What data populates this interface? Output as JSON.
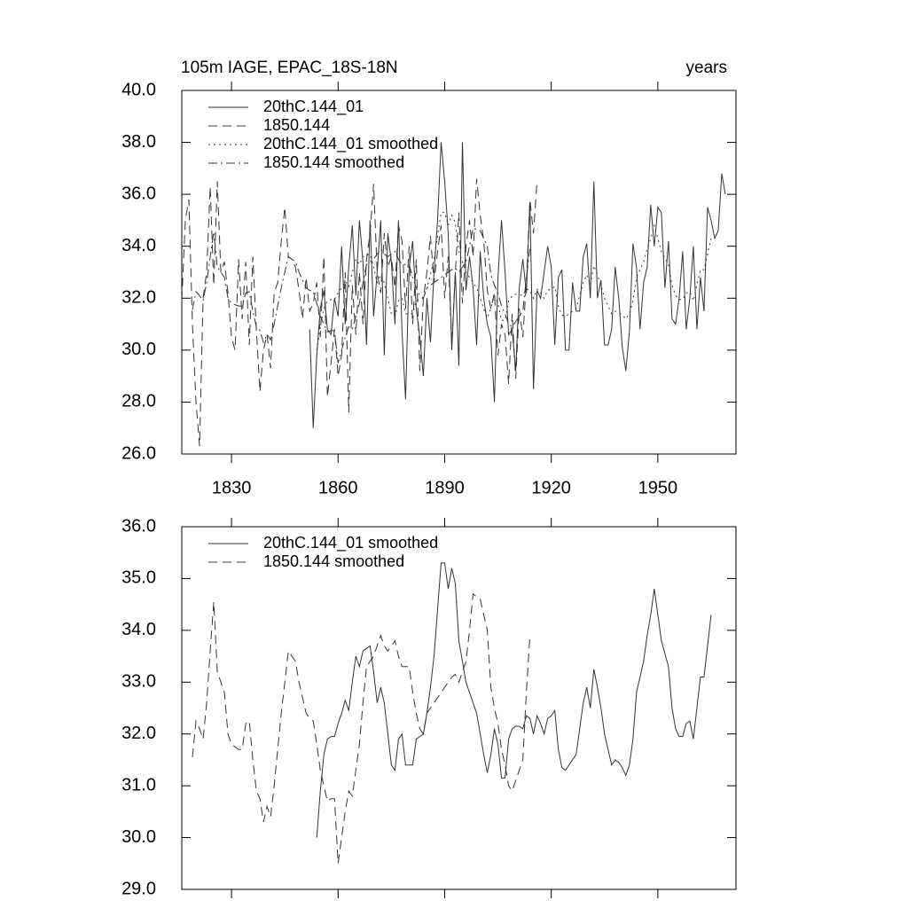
{
  "chart_data": [
    {
      "type": "line",
      "title": "105m IAGE, EPAC_18S-18N",
      "right_title": "years",
      "xlim": [
        1816,
        1972
      ],
      "xticks": [
        1830,
        1860,
        1890,
        1920,
        1950
      ],
      "ylim": [
        26,
        40
      ],
      "yticks": [
        {
          "value": 26,
          "label": "26.0"
        },
        {
          "value": 28,
          "label": "28.0"
        },
        {
          "value": 30,
          "label": "30.0"
        },
        {
          "value": 32,
          "label": "32.0"
        },
        {
          "value": 34,
          "label": "34.0"
        },
        {
          "value": 36,
          "label": "36.0"
        },
        {
          "value": 38,
          "label": "38.0"
        },
        {
          "value": 40,
          "label": "40.0"
        }
      ],
      "series": [
        {
          "name": "20thC.144_01",
          "color": "#333333",
          "dash": "solid",
          "x": [
            1852,
            1853,
            1854,
            1855,
            1856,
            1857,
            1858,
            1859,
            1860,
            1861,
            1862,
            1863,
            1864,
            1865,
            1866,
            1867,
            1868,
            1869,
            1870,
            1871,
            1872,
            1873,
            1874,
            1875,
            1876,
            1877,
            1878,
            1879,
            1880,
            1881,
            1882,
            1883,
            1884,
            1885,
            1886,
            1887,
            1888,
            1889,
            1890,
            1891,
            1892,
            1893,
            1894,
            1895,
            1896,
            1897,
            1898,
            1899,
            1900,
            1901,
            1902,
            1903,
            1904,
            1905,
            1906,
            1907,
            1908,
            1909,
            1910,
            1911,
            1912,
            1913,
            1914,
            1915,
            1916,
            1917,
            1918,
            1919,
            1920,
            1921,
            1922,
            1923,
            1924,
            1925,
            1926,
            1927,
            1928,
            1929,
            1930,
            1931,
            1932,
            1933,
            1934,
            1935,
            1936,
            1937,
            1938,
            1939,
            1940,
            1941,
            1942,
            1943,
            1944,
            1945,
            1946,
            1947,
            1948,
            1949,
            1950,
            1951,
            1952,
            1953,
            1954,
            1955,
            1956,
            1957,
            1958,
            1959,
            1960,
            1961,
            1962,
            1963,
            1964,
            1965,
            1966,
            1967,
            1968,
            1969
          ],
          "values": [
            30.8,
            27.0,
            29.8,
            31.6,
            32.3,
            30.8,
            30.6,
            32.0,
            31.3,
            34.0,
            31.0,
            33.2,
            34.8,
            32.1,
            35.0,
            33.4,
            30.2,
            35.0,
            31.3,
            33.0,
            35.0,
            29.8,
            34.5,
            33.4,
            31.0,
            35.0,
            30.7,
            28.1,
            33.2,
            34.2,
            31.6,
            30.5,
            29.0,
            32.0,
            30.3,
            33.0,
            35.0,
            38.0,
            36.5,
            34.5,
            30.0,
            33.0,
            29.4,
            38.0,
            32.3,
            33.6,
            32.4,
            30.2,
            33.8,
            32.0,
            31.0,
            30.5,
            28.0,
            32.8,
            35.0,
            33.0,
            30.6,
            30.8,
            29.2,
            32.4,
            33.5,
            32.2,
            35.7,
            28.5,
            32.3,
            32.0,
            33.0,
            34.0,
            33.2,
            30.2,
            32.8,
            33.1,
            30.0,
            30.0,
            32.6,
            31.5,
            31.5,
            33.6,
            34.1,
            32.0,
            36.5,
            32.0,
            32.7,
            30.2,
            30.2,
            30.8,
            33.2,
            32.0,
            30.1,
            29.2,
            30.7,
            34.1,
            33.2,
            30.8,
            32.6,
            33.2,
            35.6,
            34.0,
            35.5,
            35.3,
            32.4,
            34.2,
            31.2,
            31.0,
            32.0,
            33.8,
            30.8,
            32.0,
            34.0,
            30.8,
            32.8,
            31.5,
            35.5,
            35.0,
            34.3,
            34.6,
            36.8,
            36.0
          ]
        },
        {
          "name": "1850.144",
          "color": "#333333",
          "dash": "dashed",
          "x": [
            1816,
            1817,
            1818,
            1819,
            1820,
            1821,
            1822,
            1823,
            1824,
            1825,
            1826,
            1827,
            1828,
            1829,
            1830,
            1831,
            1832,
            1833,
            1834,
            1835,
            1836,
            1837,
            1838,
            1839,
            1840,
            1841,
            1842,
            1843,
            1844,
            1845,
            1846,
            1847,
            1848,
            1849,
            1850,
            1851,
            1852,
            1853,
            1854,
            1855,
            1856,
            1857,
            1858,
            1859,
            1860,
            1861,
            1862,
            1863,
            1864,
            1865,
            1866,
            1867,
            1868,
            1869,
            1870,
            1871,
            1872,
            1873,
            1874,
            1875,
            1876,
            1877,
            1878,
            1879,
            1880,
            1881,
            1882,
            1883,
            1884,
            1885,
            1886,
            1887,
            1888,
            1889,
            1890,
            1891,
            1892,
            1893,
            1894,
            1895,
            1896,
            1897,
            1898,
            1899,
            1900,
            1901,
            1902,
            1903,
            1904,
            1905,
            1906,
            1907,
            1908,
            1909,
            1910,
            1911,
            1912,
            1913,
            1914,
            1915,
            1916
          ],
          "values": [
            31.9,
            35.0,
            35.8,
            31.0,
            28.0,
            26.3,
            32.0,
            33.0,
            36.3,
            32.5,
            36.5,
            33.0,
            33.4,
            32.2,
            30.5,
            30.0,
            33.5,
            31.2,
            33.4,
            30.2,
            33.6,
            30.8,
            28.4,
            30.0,
            30.6,
            29.3,
            32.2,
            32.6,
            34.2,
            35.5,
            33.6,
            33.5,
            33.2,
            32.3,
            31.2,
            32.8,
            31.5,
            31.8,
            32.6,
            30.5,
            33.6,
            28.2,
            29.5,
            30.8,
            29.0,
            29.8,
            33.0,
            27.6,
            32.5,
            30.6,
            33.0,
            31.0,
            33.5,
            34.5,
            36.4,
            33.0,
            32.2,
            34.5,
            33.2,
            33.6,
            32.4,
            34.8,
            34.2,
            31.6,
            34.0,
            31.0,
            33.5,
            29.2,
            32.0,
            33.0,
            34.4,
            32.6,
            33.8,
            34.8,
            32.0,
            33.6,
            30.2,
            33.0,
            35.3,
            31.8,
            34.0,
            35.0,
            33.6,
            36.6,
            35.2,
            34.2,
            32.3,
            31.6,
            32.2,
            29.8,
            31.0,
            30.6,
            28.7,
            31.4,
            28.9,
            31.6,
            30.5,
            32.6,
            35.8,
            34.5,
            36.5
          ]
        },
        {
          "name": "20thC.144_01 smoothed",
          "color": "#333333",
          "dash": "dotted",
          "x": [
            1854,
            1855,
            1856,
            1857,
            1858,
            1859,
            1860,
            1861,
            1862,
            1863,
            1864,
            1865,
            1866,
            1867,
            1868,
            1869,
            1870,
            1871,
            1872,
            1873,
            1874,
            1875,
            1876,
            1877,
            1878,
            1879,
            1880,
            1881,
            1882,
            1883,
            1884,
            1885,
            1886,
            1887,
            1888,
            1889,
            1890,
            1891,
            1892,
            1893,
            1894,
            1895,
            1896,
            1897,
            1898,
            1899,
            1900,
            1901,
            1902,
            1903,
            1904,
            1905,
            1906,
            1907,
            1908,
            1909,
            1910,
            1911,
            1912,
            1913,
            1914,
            1915,
            1916,
            1917,
            1918,
            1919,
            1920,
            1921,
            1922,
            1923,
            1924,
            1925,
            1926,
            1927,
            1928,
            1929,
            1930,
            1931,
            1932,
            1933,
            1934,
            1935,
            1936,
            1937,
            1938,
            1939,
            1940,
            1941,
            1942,
            1943,
            1944,
            1945,
            1946,
            1947,
            1948,
            1949,
            1950,
            1951,
            1952,
            1953,
            1954,
            1955,
            1956,
            1957,
            1958,
            1959,
            1960,
            1961,
            1962,
            1963,
            1964,
            1965
          ],
          "values": [
            30.0,
            30.9,
            31.6,
            31.9,
            31.95,
            31.95,
            32.2,
            32.4,
            32.65,
            32.45,
            33.0,
            33.5,
            33.3,
            33.6,
            33.65,
            33.7,
            33.2,
            32.6,
            32.9,
            32.6,
            32.0,
            31.4,
            31.3,
            31.9,
            32.0,
            31.4,
            31.4,
            31.4,
            31.9,
            31.95,
            32.0,
            32.4,
            32.9,
            33.5,
            34.4,
            35.3,
            35.3,
            34.8,
            35.2,
            34.9,
            33.8,
            33.4,
            33.0,
            32.8,
            32.6,
            32.4,
            32.0,
            31.6,
            31.25,
            31.6,
            32.1,
            31.8,
            31.15,
            31.15,
            31.9,
            32.1,
            32.15,
            32.15,
            32.1,
            32.35,
            32.3,
            32.0,
            32.35,
            32.2,
            32.0,
            32.3,
            32.35,
            32.45,
            31.7,
            31.35,
            31.3,
            31.4,
            31.5,
            31.6,
            32.1,
            32.6,
            32.9,
            32.5,
            33.25,
            32.9,
            32.5,
            32.0,
            31.7,
            31.4,
            31.5,
            31.45,
            31.35,
            31.2,
            31.4,
            31.9,
            32.8,
            33.1,
            33.4,
            33.9,
            34.3,
            34.8,
            34.3,
            33.8,
            33.55,
            33.3,
            32.5,
            32.1,
            31.95,
            31.95,
            32.2,
            32.25,
            31.9,
            32.5,
            33.1,
            33.1,
            33.7,
            34.3
          ]
        },
        {
          "name": "1850.144 smoothed",
          "color": "#333333",
          "dash": "dashdot",
          "x": [
            1819,
            1820,
            1821,
            1822,
            1823,
            1824,
            1825,
            1826,
            1827,
            1828,
            1829,
            1830,
            1831,
            1832,
            1833,
            1834,
            1835,
            1836,
            1837,
            1838,
            1839,
            1840,
            1841,
            1842,
            1843,
            1844,
            1845,
            1846,
            1847,
            1848,
            1849,
            1850,
            1851,
            1852,
            1853,
            1854,
            1855,
            1856,
            1857,
            1858,
            1859,
            1860,
            1861,
            1862,
            1863,
            1864,
            1865,
            1866,
            1867,
            1868,
            1869,
            1870,
            1871,
            1872,
            1873,
            1874,
            1875,
            1876,
            1877,
            1878,
            1879,
            1880,
            1881,
            1882,
            1883,
            1884,
            1885,
            1886,
            1887,
            1888,
            1889,
            1890,
            1891,
            1892,
            1893,
            1894,
            1895,
            1896,
            1897,
            1898,
            1899,
            1900,
            1901,
            1902,
            1903,
            1904,
            1905,
            1906,
            1907,
            1908,
            1909,
            1910,
            1911,
            1912,
            1913,
            1914
          ],
          "values": [
            31.55,
            32.25,
            32.1,
            31.9,
            32.6,
            33.6,
            34.55,
            33.2,
            33.0,
            32.8,
            32.0,
            31.8,
            31.75,
            31.7,
            31.7,
            32.2,
            32.25,
            31.5,
            30.9,
            30.75,
            30.3,
            30.6,
            30.4,
            31.0,
            31.7,
            32.4,
            33.0,
            33.6,
            33.5,
            33.4,
            33.0,
            32.7,
            32.4,
            32.3,
            32.25,
            31.8,
            31.3,
            31.0,
            30.7,
            30.75,
            30.75,
            29.5,
            30.0,
            30.5,
            30.9,
            30.8,
            31.3,
            31.8,
            32.6,
            33.3,
            33.4,
            33.5,
            33.7,
            33.9,
            33.7,
            33.6,
            33.7,
            33.8,
            33.5,
            33.3,
            33.3,
            33.3,
            32.8,
            32.4,
            32.1,
            32.0,
            32.4,
            32.5,
            32.6,
            32.7,
            32.8,
            32.9,
            33.0,
            33.1,
            33.15,
            33.0,
            33.2,
            33.4,
            34.0,
            34.7,
            34.65,
            34.6,
            34.3,
            34.0,
            32.9,
            32.5,
            32.2,
            31.7,
            31.4,
            31.0,
            30.9,
            31.1,
            31.3,
            31.5,
            32.8,
            33.9
          ]
        }
      ]
    },
    {
      "type": "line",
      "ylim": [
        29,
        36
      ],
      "yticks": [
        {
          "value": 29,
          "label": "29.0"
        },
        {
          "value": 30,
          "label": "30.0"
        },
        {
          "value": 31,
          "label": "31.0"
        },
        {
          "value": 32,
          "label": "32.0"
        },
        {
          "value": 33,
          "label": "33.0"
        },
        {
          "value": 34,
          "label": "34.0"
        },
        {
          "value": 35,
          "label": "35.0"
        },
        {
          "value": 36,
          "label": "36.0"
        }
      ],
      "line_styles": [
        "solid",
        "dashed"
      ]
    }
  ]
}
